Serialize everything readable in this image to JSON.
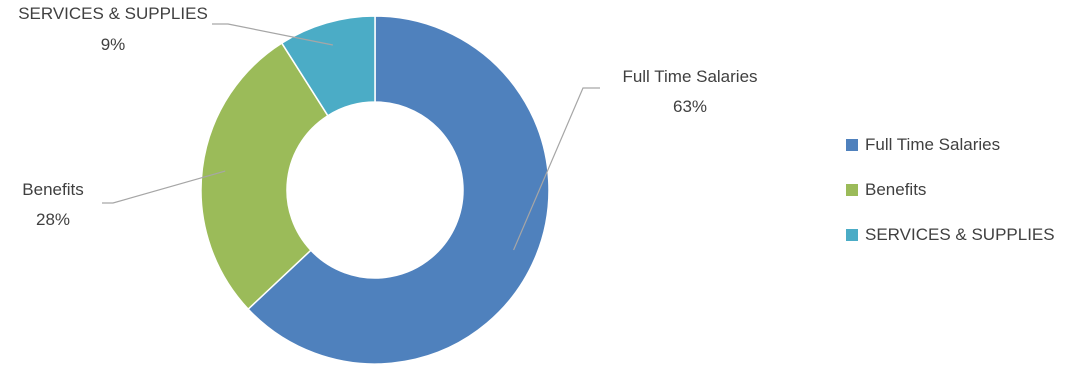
{
  "chart_data": {
    "type": "pie",
    "donut": true,
    "title": "",
    "labels": [
      "Full Time Salaries",
      "Benefits",
      "SERVICES & SUPPLIES"
    ],
    "values": [
      63,
      28,
      9
    ],
    "value_labels": [
      "63%",
      "28%",
      "9%"
    ],
    "colors": [
      "#4f81bd",
      "#9bbb59",
      "#4bacc6"
    ],
    "legend_position": "right"
  }
}
